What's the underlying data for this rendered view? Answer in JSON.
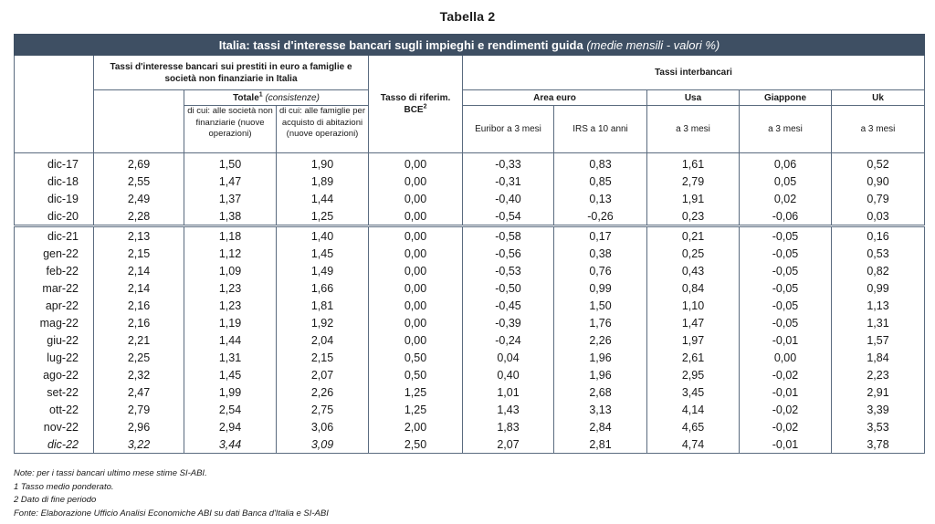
{
  "title": "Tabella 2",
  "banner": {
    "main": "Italia: tassi d'interesse bancari sugli impieghi e rendimenti guida",
    "sub": " (medie mensili - valori %)"
  },
  "header": {
    "loans_group": "Tassi d'interesse bancari sui prestiti in euro a famiglie e società non finanziarie in Italia",
    "totale": "Totale",
    "totale_sup": "1",
    "consistenze": " (consistenze)",
    "firms": "di cui: alle società non finanziarie (nuove operazioni)",
    "families": "di cui: alle famiglie per acquisto di abitazioni (nuove operazioni)",
    "bce": "Tasso di riferim. BCE",
    "bce_sup": "2",
    "interbank": "Tassi interbancari",
    "area_euro": "Area euro",
    "usa": "Usa",
    "giappone": "Giappone",
    "uk": "Uk",
    "euribor": "Euribor a 3 mesi",
    "irs": "IRS a 10 anni",
    "usa_sub": "a 3 mesi",
    "giappone_sub": "a 3 mesi",
    "uk_sub": "a 3 mesi"
  },
  "rows": [
    [
      "dic-17",
      "2,69",
      "1,50",
      "1,90",
      "0,00",
      "-0,33",
      "0,83",
      "1,61",
      "0,06",
      "0,52"
    ],
    [
      "dic-18",
      "2,55",
      "1,47",
      "1,89",
      "0,00",
      "-0,31",
      "0,85",
      "2,79",
      "0,05",
      "0,90"
    ],
    [
      "dic-19",
      "2,49",
      "1,37",
      "1,44",
      "0,00",
      "-0,40",
      "0,13",
      "1,91",
      "0,02",
      "0,79"
    ],
    [
      "dic-20",
      "2,28",
      "1,38",
      "1,25",
      "0,00",
      "-0,54",
      "-0,26",
      "0,23",
      "-0,06",
      "0,03"
    ],
    [
      "dic-21",
      "2,13",
      "1,18",
      "1,40",
      "0,00",
      "-0,58",
      "0,17",
      "0,21",
      "-0,05",
      "0,16"
    ],
    [
      "gen-22",
      "2,15",
      "1,12",
      "1,45",
      "0,00",
      "-0,56",
      "0,38",
      "0,25",
      "-0,05",
      "0,53"
    ],
    [
      "feb-22",
      "2,14",
      "1,09",
      "1,49",
      "0,00",
      "-0,53",
      "0,76",
      "0,43",
      "-0,05",
      "0,82"
    ],
    [
      "mar-22",
      "2,14",
      "1,23",
      "1,66",
      "0,00",
      "-0,50",
      "0,99",
      "0,84",
      "-0,05",
      "0,99"
    ],
    [
      "apr-22",
      "2,16",
      "1,23",
      "1,81",
      "0,00",
      "-0,45",
      "1,50",
      "1,10",
      "-0,05",
      "1,13"
    ],
    [
      "mag-22",
      "2,16",
      "1,19",
      "1,92",
      "0,00",
      "-0,39",
      "1,76",
      "1,47",
      "-0,05",
      "1,31"
    ],
    [
      "giu-22",
      "2,21",
      "1,44",
      "2,04",
      "0,00",
      "-0,24",
      "2,26",
      "1,97",
      "-0,01",
      "1,57"
    ],
    [
      "lug-22",
      "2,25",
      "1,31",
      "2,15",
      "0,50",
      "0,04",
      "1,96",
      "2,61",
      "0,00",
      "1,84"
    ],
    [
      "ago-22",
      "2,32",
      "1,45",
      "2,07",
      "0,50",
      "0,40",
      "1,96",
      "2,95",
      "-0,02",
      "2,23"
    ],
    [
      "set-22",
      "2,47",
      "1,99",
      "2,26",
      "1,25",
      "1,01",
      "2,68",
      "3,45",
      "-0,01",
      "2,91"
    ],
    [
      "ott-22",
      "2,79",
      "2,54",
      "2,75",
      "1,25",
      "1,43",
      "3,13",
      "4,14",
      "-0,02",
      "3,39"
    ],
    [
      "nov-22",
      "2,96",
      "2,94",
      "3,06",
      "2,00",
      "1,83",
      "2,84",
      "4,65",
      "-0,02",
      "3,53"
    ],
    [
      "dic-22",
      "3,22",
      "3,44",
      "3,09",
      "2,50",
      "2,07",
      "2,81",
      "4,74",
      "-0,01",
      "3,78"
    ]
  ],
  "italic_cols_last_row": 4,
  "notes": [
    "Note: per i tassi bancari ultimo mese stime SI-ABI.",
    "1 Tasso medio ponderato.",
    "2 Dato di fine periodo",
    "Fonte: Elaborazione Ufficio Analisi Economiche ABI su dati Banca d'Italia e SI-ABI"
  ]
}
